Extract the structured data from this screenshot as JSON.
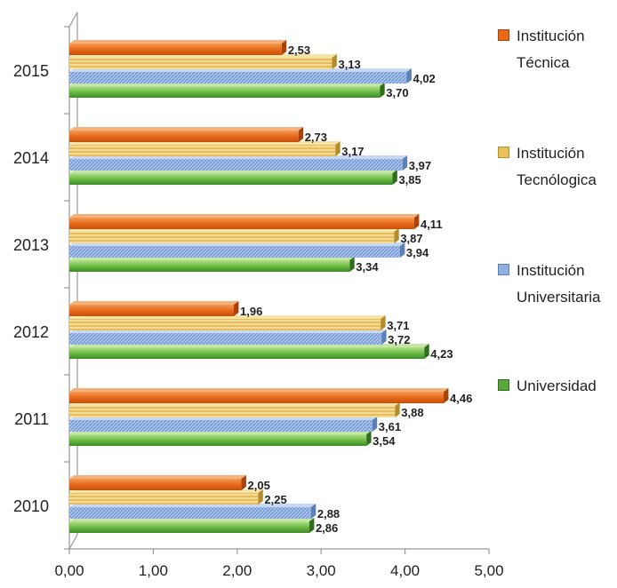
{
  "chart_data": {
    "type": "bar",
    "orientation": "horizontal",
    "categories": [
      "2010",
      "2011",
      "2012",
      "2013",
      "2014",
      "2015"
    ],
    "series": [
      {
        "name": "Institución Técnica",
        "name_lines": [
          "Institución",
          "Técnica"
        ],
        "color": "#e8691a",
        "values": [
          2.05,
          4.46,
          1.96,
          4.11,
          2.73,
          2.53
        ],
        "labels": [
          "2,05",
          "4,46",
          "1,96",
          "4,11",
          "2,73",
          "2,53"
        ]
      },
      {
        "name": "Institución Tecnológica",
        "name_lines": [
          "Institución",
          "Tecnólogica"
        ],
        "color": "#e9c25a",
        "values": [
          2.25,
          3.88,
          3.71,
          3.87,
          3.17,
          3.13
        ],
        "labels": [
          "2,25",
          "3,88",
          "3,71",
          "3,87",
          "3,17",
          "3,13"
        ]
      },
      {
        "name": "Institución Universitaria",
        "name_lines": [
          "Institución",
          "Universitaria"
        ],
        "color": "#8fb0e0",
        "values": [
          2.88,
          3.61,
          3.72,
          3.94,
          3.97,
          4.02
        ],
        "labels": [
          "2,88",
          "3,61",
          "3,72",
          "3,94",
          "3,97",
          "4,02"
        ]
      },
      {
        "name": "Universidad",
        "name_lines": [
          "Universidad"
        ],
        "color": "#5aa83c",
        "values": [
          2.86,
          3.54,
          4.23,
          3.34,
          3.85,
          3.7
        ],
        "labels": [
          "2,86",
          "3,54",
          "4,23",
          "3,34",
          "3,85",
          "3,70"
        ]
      }
    ],
    "x_ticks": [
      "0,00",
      "1,00",
      "2,00",
      "3,00",
      "4,00",
      "5,00"
    ],
    "xlim": [
      0,
      5
    ],
    "grid": false,
    "legend_position": "right"
  }
}
